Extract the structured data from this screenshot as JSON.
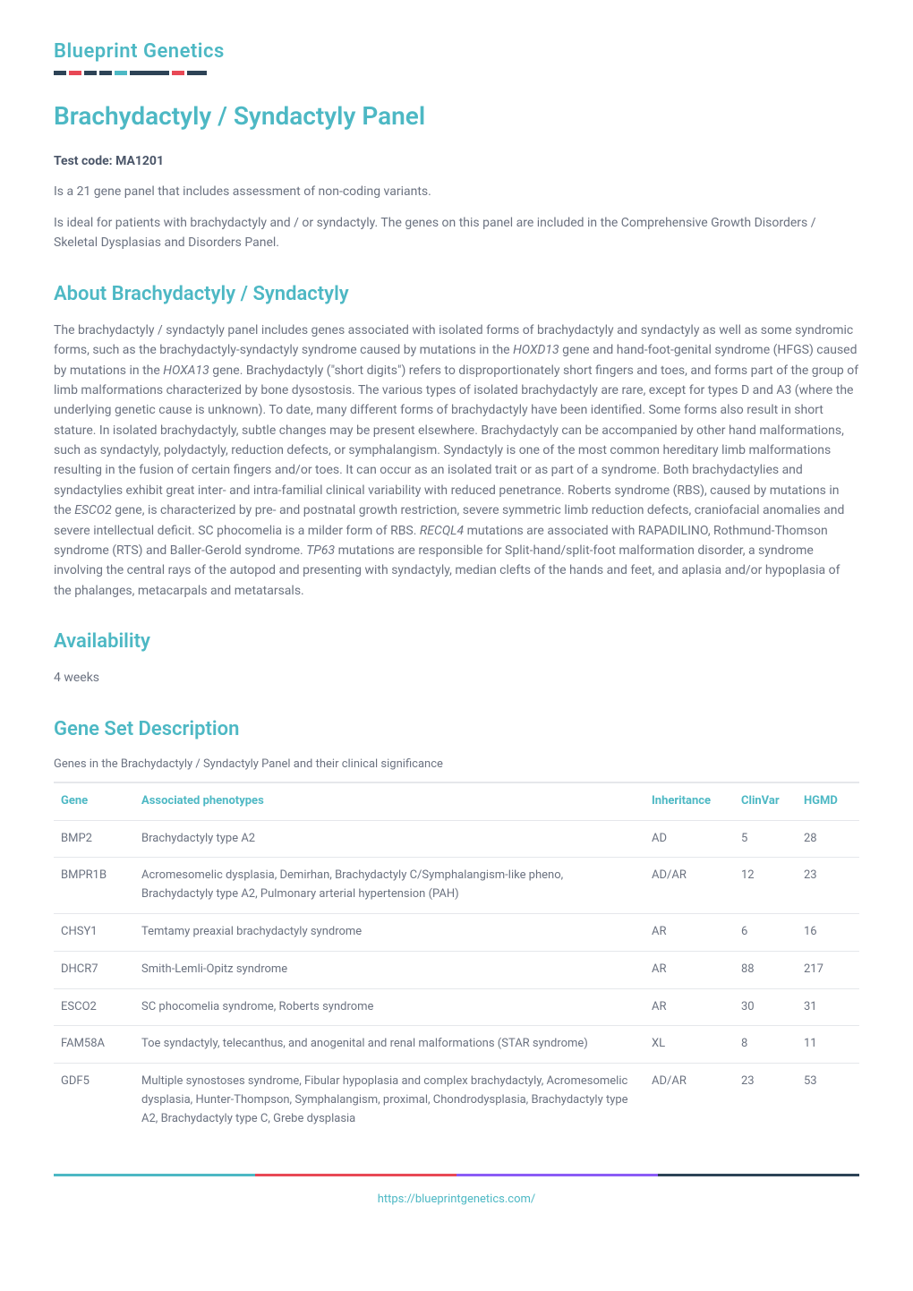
{
  "logo": {
    "text": "Blueprint Genetics",
    "stripes": [
      {
        "color": "#2d4356",
        "width": 12
      },
      {
        "color": "#e84855",
        "width": 12
      },
      {
        "color": "#2d4356",
        "width": 12
      },
      {
        "color": "#2d4356",
        "width": 12
      },
      {
        "color": "#4db8c4",
        "width": 12
      },
      {
        "color": "#2d4356",
        "width": 40
      },
      {
        "color": "#e84855",
        "width": 12
      },
      {
        "color": "#2d4356",
        "width": 20
      }
    ]
  },
  "title": "Brachydactyly / Syndactyly Panel",
  "testcode_label": "Test code: MA1201",
  "intro_p1": "Is a 21 gene panel that includes assessment of non-coding variants.",
  "intro_p2": "Is ideal for patients with brachydactyly and / or syndactyly. The genes on this panel are included in the Comprehensive Growth Disorders / Skeletal Dysplasias and Disorders Panel.",
  "about": {
    "heading": "About Brachydactyly / Syndactyly",
    "body_pre": "The brachydactyly / syndactyly panel includes genes associated with isolated forms of brachydactyly and syndactyly as well as some syndromic forms, such as the brachydactyly-syndactyly syndrome caused by mutations in the ",
    "gene1": "HOXD13",
    "body_mid1": " gene and hand-foot-genital syndrome (HFGS) caused by mutations in the ",
    "gene2": "HOXA13",
    "body_mid2": " gene. Brachydactyly (\"short digits\") refers to disproportionately short fingers and toes, and forms part of the group of limb malformations characterized by bone dysostosis. The various types of isolated brachydactyly are rare, except for types D and A3 (where the underlying genetic cause is unknown). To date, many different forms of brachydactyly have been identified. Some forms also result in short stature. In isolated brachydactyly, subtle changes may be present elsewhere. Brachydactyly can be accompanied by other hand malformations, such as syndactyly, polydactyly, reduction defects, or symphalangism. Syndactyly is one of the most common hereditary limb malformations resulting in the fusion of certain fingers and/or toes. It can occur as an isolated trait or as part of a syndrome. Both brachydactylies and syndactylies exhibit great inter- and intra-familial clinical variability with reduced penetrance. Roberts syndrome (RBS), caused by mutations in the ",
    "gene3": "ESCO2",
    "body_mid3": " gene, is characterized by pre- and postnatal growth restriction, severe symmetric limb reduction defects, craniofacial anomalies and severe intellectual deficit. SC phocomelia is a milder form of RBS. ",
    "gene4": "RECQL4",
    "body_mid4": " mutations are associated with RAPADILINO, Rothmund-Thomson syndrome (RTS) and Baller-Gerold syndrome. ",
    "gene5": "TP63",
    "body_end": " mutations are responsible for Split-hand/split-foot malformation disorder, a syndrome involving the central rays of the autopod and presenting with syndactyly, median clefts of the hands and feet, and aplasia and/or hypoplasia of the phalanges, metacarpals and metatarsals."
  },
  "availability": {
    "heading": "Availability",
    "value": "4 weeks"
  },
  "geneset": {
    "heading": "Gene Set Description",
    "caption": "Genes in the Brachydactyly / Syndactyly Panel and their clinical significance",
    "columns": [
      "Gene",
      "Associated phenotypes",
      "Inheritance",
      "ClinVar",
      "HGMD"
    ],
    "rows": [
      {
        "gene": "BMP2",
        "pheno": "Brachydactyly type A2",
        "inherit": "AD",
        "clinvar": "5",
        "hgmd": "28"
      },
      {
        "gene": "BMPR1B",
        "pheno": "Acromesomelic dysplasia, Demirhan, Brachydactyly C/Symphalangism-like pheno, Brachydactyly type A2, Pulmonary arterial hypertension (PAH)",
        "inherit": "AD/AR",
        "clinvar": "12",
        "hgmd": "23"
      },
      {
        "gene": "CHSY1",
        "pheno": "Temtamy preaxial brachydactyly syndrome",
        "inherit": "AR",
        "clinvar": "6",
        "hgmd": "16"
      },
      {
        "gene": "DHCR7",
        "pheno": "Smith-Lemli-Opitz syndrome",
        "inherit": "AR",
        "clinvar": "88",
        "hgmd": "217"
      },
      {
        "gene": "ESCO2",
        "pheno": "SC phocomelia syndrome, Roberts syndrome",
        "inherit": "AR",
        "clinvar": "30",
        "hgmd": "31"
      },
      {
        "gene": "FAM58A",
        "pheno": "Toe syndactyly, telecanthus, and anogenital and renal malformations (STAR syndrome)",
        "inherit": "XL",
        "clinvar": "8",
        "hgmd": "11"
      },
      {
        "gene": "GDF5",
        "pheno": "Multiple synostoses syndrome, Fibular hypoplasia and complex brachydactyly, Acromesomelic dysplasia, Hunter-Thompson, Symphalangism, proximal, Chondrodysplasia, Brachydactyly type A2, Brachydactyly type C, Grebe dysplasia",
        "inherit": "AD/AR",
        "clinvar": "23",
        "hgmd": "53"
      }
    ]
  },
  "footer": {
    "stripe_colors": [
      "#4db8c4",
      "#e84855",
      "#8b5cf6",
      "#2d4356"
    ],
    "url": "https://blueprintgenetics.com/"
  },
  "styling": {
    "accent_color": "#4db8c4",
    "text_color": "#6b7280",
    "heading_color": "#4db8c4",
    "border_color": "#e5e7eb",
    "body_fontsize": 14,
    "h1_fontsize": 28,
    "h2_fontsize": 22,
    "table_fontsize": 13
  }
}
